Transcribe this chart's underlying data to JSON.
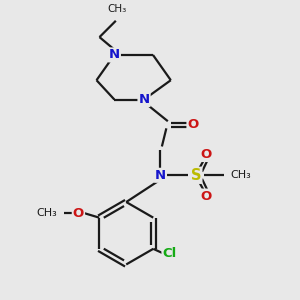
{
  "bg_color": "#e8e8e8",
  "bond_color": "#1a1a1a",
  "N_color": "#1515cc",
  "O_color": "#cc1515",
  "S_color": "#bbbb00",
  "Cl_color": "#15aa15",
  "line_width": 1.6,
  "font_size": 9.5,
  "fig_size": [
    3.0,
    3.0
  ],
  "dpi": 100,
  "xlim": [
    0,
    10
  ],
  "ylim": [
    0,
    10
  ]
}
